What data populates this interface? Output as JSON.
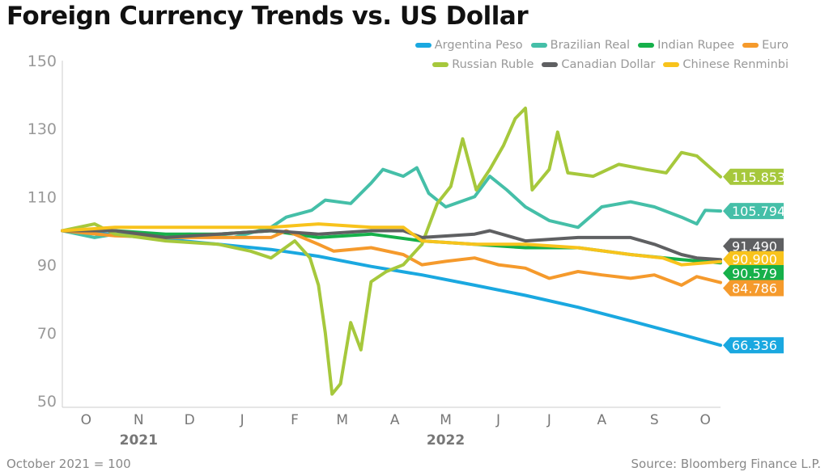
{
  "chart_data": {
    "type": "line",
    "title": "Foreign Currency Trends vs. US Dollar",
    "note": "October 2021 = 100",
    "source": "Source: Bloomberg Finance L.P.",
    "ylim": [
      50,
      150
    ],
    "yticks": [
      50,
      70,
      90,
      110,
      130,
      150
    ],
    "xlim": [
      "2021-10-01",
      "2022-10-24"
    ],
    "xticks": [
      {
        "label": "O",
        "date": "2021-10-15"
      },
      {
        "label": "N",
        "date": "2021-11-15"
      },
      {
        "label": "D",
        "date": "2021-12-15"
      },
      {
        "label": "J",
        "date": "2022-01-15"
      },
      {
        "label": "F",
        "date": "2022-02-15"
      },
      {
        "label": "M",
        "date": "2022-03-15"
      },
      {
        "label": "A",
        "date": "2022-04-15"
      },
      {
        "label": "M",
        "date": "2022-05-15"
      },
      {
        "label": "J",
        "date": "2022-06-15"
      },
      {
        "label": "J",
        "date": "2022-07-15"
      },
      {
        "label": "A",
        "date": "2022-08-15"
      },
      {
        "label": "S",
        "date": "2022-09-15"
      },
      {
        "label": "O",
        "date": "2022-10-15"
      }
    ],
    "year_labels": [
      {
        "label": "2021",
        "date": "2021-11-15"
      },
      {
        "label": "2022",
        "date": "2022-05-15"
      }
    ],
    "grid": false,
    "legend": "top-right",
    "series": [
      {
        "name": "Argentina Peso",
        "color": "#1aa8e0",
        "end_label": "66.336",
        "points": [
          [
            "2021-10-01",
            100
          ],
          [
            "2021-11-01",
            98.8
          ],
          [
            "2021-12-01",
            97.5
          ],
          [
            "2022-01-01",
            96
          ],
          [
            "2022-02-01",
            94.5
          ],
          [
            "2022-03-01",
            92.5
          ],
          [
            "2022-04-01",
            89.5
          ],
          [
            "2022-05-01",
            87
          ],
          [
            "2022-06-01",
            84
          ],
          [
            "2022-07-01",
            81
          ],
          [
            "2022-08-01",
            77.5
          ],
          [
            "2022-09-01",
            73.5
          ],
          [
            "2022-10-01",
            69.5
          ],
          [
            "2022-10-24",
            66.336
          ]
        ]
      },
      {
        "name": "Brazilian Real",
        "color": "#45bfa8",
        "end_label": "105.794",
        "points": [
          [
            "2021-10-01",
            100
          ],
          [
            "2021-10-20",
            98
          ],
          [
            "2021-11-01",
            99
          ],
          [
            "2021-11-20",
            98.5
          ],
          [
            "2021-12-15",
            99
          ],
          [
            "2022-01-10",
            98
          ],
          [
            "2022-02-01",
            101
          ],
          [
            "2022-02-10",
            104
          ],
          [
            "2022-02-25",
            106
          ],
          [
            "2022-03-05",
            109
          ],
          [
            "2022-03-20",
            108
          ],
          [
            "2022-04-01",
            114
          ],
          [
            "2022-04-08",
            118
          ],
          [
            "2022-04-20",
            116
          ],
          [
            "2022-04-28",
            118.5
          ],
          [
            "2022-05-05",
            111
          ],
          [
            "2022-05-15",
            107
          ],
          [
            "2022-06-01",
            110
          ],
          [
            "2022-06-10",
            116
          ],
          [
            "2022-06-20",
            112
          ],
          [
            "2022-07-01",
            107
          ],
          [
            "2022-07-15",
            103
          ],
          [
            "2022-08-01",
            101
          ],
          [
            "2022-08-15",
            107
          ],
          [
            "2022-09-01",
            108.5
          ],
          [
            "2022-09-15",
            107
          ],
          [
            "2022-10-01",
            104
          ],
          [
            "2022-10-10",
            102
          ],
          [
            "2022-10-15",
            106
          ],
          [
            "2022-10-24",
            105.794
          ]
        ]
      },
      {
        "name": "Indian Rupee",
        "color": "#16b04a",
        "end_label": "90.579",
        "points": [
          [
            "2021-10-01",
            100
          ],
          [
            "2021-11-01",
            100
          ],
          [
            "2021-12-01",
            99
          ],
          [
            "2022-01-01",
            99
          ],
          [
            "2022-02-01",
            100
          ],
          [
            "2022-03-01",
            98
          ],
          [
            "2022-04-01",
            99
          ],
          [
            "2022-05-01",
            97
          ],
          [
            "2022-06-01",
            96
          ],
          [
            "2022-07-01",
            95
          ],
          [
            "2022-08-01",
            95
          ],
          [
            "2022-09-01",
            93
          ],
          [
            "2022-10-01",
            91.5
          ],
          [
            "2022-10-24",
            90.579
          ]
        ]
      },
      {
        "name": "Euro",
        "color": "#f59a2c",
        "end_label": "84.786",
        "points": [
          [
            "2021-10-01",
            100
          ],
          [
            "2021-11-01",
            98.5
          ],
          [
            "2021-12-01",
            98
          ],
          [
            "2022-01-01",
            98
          ],
          [
            "2022-02-01",
            98
          ],
          [
            "2022-02-10",
            100
          ],
          [
            "2022-03-01",
            96
          ],
          [
            "2022-03-10",
            94
          ],
          [
            "2022-04-01",
            95
          ],
          [
            "2022-04-20",
            93
          ],
          [
            "2022-05-01",
            90
          ],
          [
            "2022-05-15",
            91
          ],
          [
            "2022-06-01",
            92
          ],
          [
            "2022-06-15",
            90
          ],
          [
            "2022-07-01",
            89
          ],
          [
            "2022-07-15",
            86
          ],
          [
            "2022-08-01",
            88
          ],
          [
            "2022-08-15",
            87
          ],
          [
            "2022-09-01",
            86
          ],
          [
            "2022-09-15",
            87
          ],
          [
            "2022-10-01",
            84
          ],
          [
            "2022-10-10",
            86.5
          ],
          [
            "2022-10-24",
            84.786
          ]
        ]
      },
      {
        "name": "Russian Ruble",
        "color": "#a6c83c",
        "end_label": "115.853",
        "points": [
          [
            "2021-10-01",
            100
          ],
          [
            "2021-10-20",
            102
          ],
          [
            "2021-11-01",
            99
          ],
          [
            "2021-12-01",
            97
          ],
          [
            "2022-01-01",
            96
          ],
          [
            "2022-01-20",
            94
          ],
          [
            "2022-02-01",
            92
          ],
          [
            "2022-02-15",
            97
          ],
          [
            "2022-02-24",
            92
          ],
          [
            "2022-03-01",
            84
          ],
          [
            "2022-03-05",
            70
          ],
          [
            "2022-03-09",
            52
          ],
          [
            "2022-03-14",
            55
          ],
          [
            "2022-03-20",
            73
          ],
          [
            "2022-03-26",
            65
          ],
          [
            "2022-04-01",
            85
          ],
          [
            "2022-04-10",
            88
          ],
          [
            "2022-04-20",
            90
          ],
          [
            "2022-05-01",
            96
          ],
          [
            "2022-05-10",
            108
          ],
          [
            "2022-05-18",
            113
          ],
          [
            "2022-05-25",
            127
          ],
          [
            "2022-06-02",
            112
          ],
          [
            "2022-06-10",
            118
          ],
          [
            "2022-06-18",
            125
          ],
          [
            "2022-06-25",
            133
          ],
          [
            "2022-07-01",
            136
          ],
          [
            "2022-07-05",
            112
          ],
          [
            "2022-07-15",
            118
          ],
          [
            "2022-07-20",
            129
          ],
          [
            "2022-07-26",
            117
          ],
          [
            "2022-08-10",
            116
          ],
          [
            "2022-08-25",
            119.5
          ],
          [
            "2022-09-10",
            118
          ],
          [
            "2022-09-22",
            117
          ],
          [
            "2022-10-01",
            123
          ],
          [
            "2022-10-10",
            122
          ],
          [
            "2022-10-24",
            115.853
          ]
        ]
      },
      {
        "name": "Canadian Dollar",
        "color": "#5f6062",
        "end_label": "91.490",
        "points": [
          [
            "2021-10-01",
            100
          ],
          [
            "2021-11-01",
            100
          ],
          [
            "2021-12-01",
            98
          ],
          [
            "2022-01-01",
            99
          ],
          [
            "2022-02-01",
            100
          ],
          [
            "2022-03-01",
            99
          ],
          [
            "2022-04-01",
            100
          ],
          [
            "2022-04-20",
            100
          ],
          [
            "2022-05-01",
            98
          ],
          [
            "2022-06-01",
            99
          ],
          [
            "2022-06-10",
            100
          ],
          [
            "2022-07-01",
            97
          ],
          [
            "2022-08-01",
            98
          ],
          [
            "2022-09-01",
            98
          ],
          [
            "2022-09-15",
            96
          ],
          [
            "2022-10-01",
            93
          ],
          [
            "2022-10-10",
            92
          ],
          [
            "2022-10-24",
            91.49
          ]
        ]
      },
      {
        "name": "Chinese Renminbi",
        "color": "#f8c31c",
        "end_label": "90.900",
        "points": [
          [
            "2021-10-01",
            100
          ],
          [
            "2021-11-01",
            101
          ],
          [
            "2021-12-01",
            101
          ],
          [
            "2022-01-01",
            101
          ],
          [
            "2022-02-01",
            101
          ],
          [
            "2022-03-01",
            102
          ],
          [
            "2022-04-01",
            101
          ],
          [
            "2022-04-20",
            101
          ],
          [
            "2022-05-01",
            97
          ],
          [
            "2022-06-01",
            96
          ],
          [
            "2022-07-01",
            96
          ],
          [
            "2022-08-01",
            95
          ],
          [
            "2022-09-01",
            93
          ],
          [
            "2022-09-20",
            92
          ],
          [
            "2022-10-01",
            90
          ],
          [
            "2022-10-24",
            90.9
          ]
        ]
      }
    ]
  }
}
